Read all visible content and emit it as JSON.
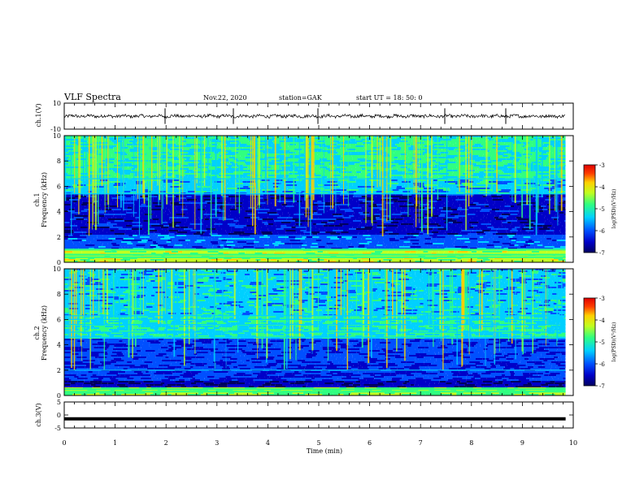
{
  "header": {
    "title": "VLF Spectra",
    "date": "Nov.22, 2020",
    "station": "station=GAK",
    "start_ut": "start UT =  18: 50: 0"
  },
  "colorbar": {
    "label": "log(PSD)(V²/Hz)",
    "ticks": [
      "-3",
      "-4",
      "-5",
      "-6",
      "-7"
    ],
    "range": [
      -7,
      -3
    ],
    "colors": [
      "#000060",
      "#0000c8",
      "#0050ff",
      "#00d0ff",
      "#30ff80",
      "#c0ff20",
      "#ffd000",
      "#ff4000",
      "#e00000"
    ]
  },
  "chart_data": [
    {
      "type": "line",
      "panel": "ch1-waveform",
      "ylabel": "ch.1(V)",
      "ylim": [
        -10,
        10
      ],
      "yticks": [
        "10",
        "-10"
      ],
      "mean_value": 0,
      "note_values": "waveform fluctuating roughly between -3 and +3 V"
    },
    {
      "type": "heatmap",
      "panel": "ch1-spectrogram",
      "ylabel": "ch.1\nFrequency (kHz)",
      "ylim": [
        0,
        10
      ],
      "yticks": [
        "0",
        "2",
        "4",
        "6",
        "8",
        "10"
      ],
      "bands_khz": [
        0.4,
        0.6,
        1.0,
        5.4,
        6.6
      ],
      "series_colorbar": "log(PSD)(V²/Hz)"
    },
    {
      "type": "heatmap",
      "panel": "ch2-spectrogram",
      "ylabel": "ch.2\nFrequency (kHz)",
      "ylim": [
        0,
        10
      ],
      "yticks": [
        "0",
        "2",
        "4",
        "6",
        "8",
        "10"
      ],
      "bands_khz": [
        0.3,
        0.5,
        2.0,
        4.6,
        5.0,
        5.6,
        6.0,
        6.3
      ],
      "series_colorbar": "log(PSD)(V²/Hz)"
    },
    {
      "type": "line",
      "panel": "ch3-waveform",
      "ylabel": "ch.3(V)",
      "ylim": [
        -5,
        5
      ],
      "yticks": [
        "5",
        "0",
        "-5"
      ],
      "constant_value": -1.5
    }
  ],
  "xaxis": {
    "label": "Time (min)",
    "ticks": [
      "0",
      "1",
      "2",
      "3",
      "4",
      "5",
      "6",
      "7",
      "8",
      "9",
      "10"
    ],
    "range": [
      0,
      10
    ],
    "data_end": 9.85
  }
}
